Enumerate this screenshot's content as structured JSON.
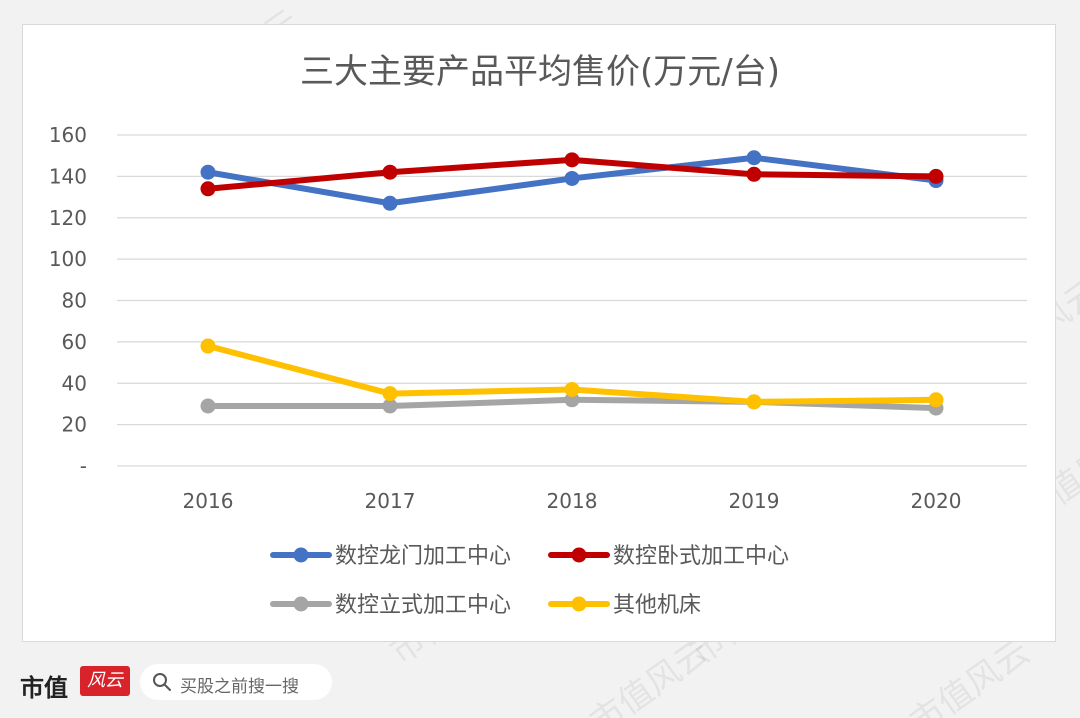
{
  "chart_data": {
    "type": "line",
    "title": "三大主要产品平均售价(万元/台)",
    "categories": [
      "2016",
      "2017",
      "2018",
      "2019",
      "2020"
    ],
    "ylim": [
      0,
      160
    ],
    "yticks": [
      0,
      20,
      40,
      60,
      80,
      100,
      120,
      140,
      160
    ],
    "ytick_labels": [
      "-",
      "20",
      "40",
      "60",
      "80",
      "100",
      "120",
      "140",
      "160"
    ],
    "grid": true,
    "legend_position": "bottom",
    "series": [
      {
        "name": "数控龙门加工中心",
        "color": "#4472c4",
        "values": [
          142,
          127,
          139,
          149,
          138
        ]
      },
      {
        "name": "数控卧式加工中心",
        "color": "#c00000",
        "values": [
          134,
          142,
          148,
          141,
          140
        ]
      },
      {
        "name": "数控立式加工中心",
        "color": "#a5a5a5",
        "values": [
          29,
          29,
          32,
          31,
          28
        ]
      },
      {
        "name": "其他机床",
        "color": "#ffc000",
        "values": [
          58,
          35,
          37,
          31,
          32
        ]
      }
    ]
  },
  "watermark": "市值风云",
  "footer": {
    "brand": "市值",
    "logo_icon": "brand-logo-icon",
    "search_icon": "search-icon",
    "search_placeholder": "买股之前搜一搜"
  }
}
